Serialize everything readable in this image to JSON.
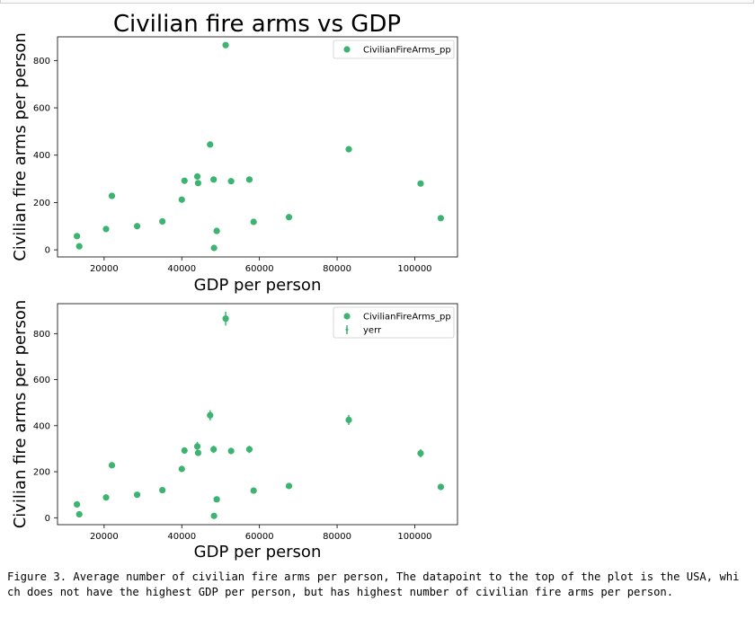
{
  "figure_title": "Civilian fire arms vs GDP",
  "caption": "Figure 3. Average number of civilian fire arms per person, The datapoint to the top of the plot is the USA, which does not have the highest GDP per person, but has highest number of civilian fire arms per person.",
  "marker_color": "#3cb371",
  "chart_data": [
    {
      "type": "scatter",
      "title": "Civilian fire arms vs GDP",
      "xlabel": "GDP per person",
      "ylabel": "Civilian fire arms per person",
      "xlim": [
        8000,
        111000
      ],
      "ylim": [
        -30,
        900
      ],
      "xticks": [
        20000,
        40000,
        60000,
        80000,
        100000
      ],
      "yticks": [
        0,
        200,
        400,
        600,
        800
      ],
      "legend": {
        "placement": "top-right",
        "entries": [
          "CivilianFireArms_pp"
        ]
      },
      "series": [
        {
          "name": "CivilianFireArms_pp",
          "color": "#3cb371",
          "x": [
            13000,
            13600,
            20500,
            22000,
            28500,
            35000,
            40000,
            40700,
            44000,
            44200,
            47300,
            48200,
            48300,
            49000,
            51300,
            52700,
            57400,
            58500,
            67600,
            83000,
            101500,
            106700
          ],
          "y": [
            58,
            15,
            88,
            228,
            100,
            120,
            212,
            292,
            310,
            282,
            445,
            297,
            8,
            80,
            865,
            290,
            297,
            118,
            138,
            425,
            280,
            134
          ]
        }
      ]
    },
    {
      "type": "scatter",
      "title": "",
      "xlabel": "GDP per person",
      "ylabel": "Civilian fire arms per person",
      "xlim": [
        8000,
        111000
      ],
      "ylim": [
        -30,
        930
      ],
      "xticks": [
        20000,
        40000,
        60000,
        80000,
        100000
      ],
      "yticks": [
        0,
        200,
        400,
        600,
        800
      ],
      "legend": {
        "placement": "top-right",
        "entries": [
          "CivilianFireArms_pp",
          "yerr"
        ]
      },
      "series": [
        {
          "name": "CivilianFireArms_pp",
          "color": "#3cb371",
          "x": [
            13000,
            13600,
            20500,
            22000,
            28500,
            35000,
            40000,
            40700,
            44000,
            44200,
            47300,
            48200,
            48300,
            49000,
            51300,
            52700,
            57400,
            58500,
            67600,
            83000,
            101500,
            106700
          ],
          "y": [
            58,
            15,
            88,
            228,
            100,
            120,
            212,
            292,
            310,
            282,
            445,
            297,
            8,
            80,
            865,
            290,
            297,
            118,
            138,
            425,
            280,
            134
          ]
        },
        {
          "name": "yerr",
          "color": "#3cb371",
          "x": [
            13000,
            13600,
            20500,
            22000,
            28500,
            35000,
            40000,
            40700,
            44000,
            44200,
            47300,
            48200,
            48300,
            49000,
            51300,
            52700,
            57400,
            58500,
            67600,
            83000,
            101500,
            106700
          ],
          "y": [
            58,
            15,
            88,
            228,
            100,
            120,
            212,
            292,
            310,
            282,
            445,
            297,
            8,
            80,
            865,
            290,
            297,
            118,
            138,
            425,
            280,
            134
          ],
          "err": [
            2,
            2,
            4,
            12,
            3,
            4,
            10,
            14,
            20,
            10,
            22,
            16,
            2,
            3,
            30,
            14,
            16,
            4,
            5,
            22,
            18,
            4
          ]
        }
      ]
    }
  ]
}
